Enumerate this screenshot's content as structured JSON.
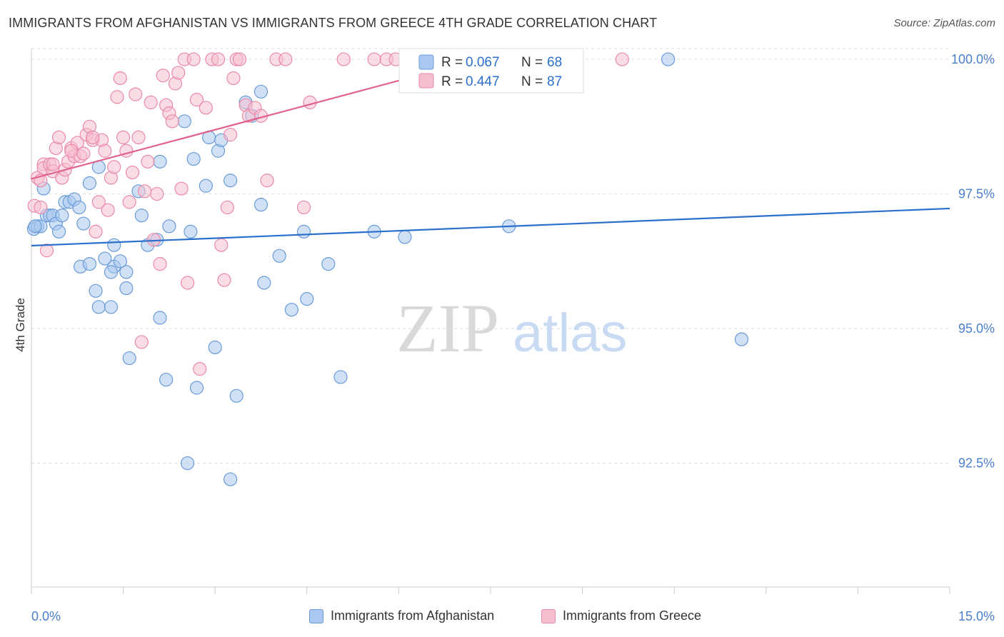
{
  "header": {
    "title": "IMMIGRANTS FROM AFGHANISTAN VS IMMIGRANTS FROM GREECE 4TH GRADE CORRELATION CHART",
    "source": "Source: ZipAtlas.com"
  },
  "watermark": {
    "part1": "ZIP",
    "part2": "atlas"
  },
  "colors": {
    "blue_fill": "#aac8ef",
    "blue_stroke": "#6a9bd8",
    "blue_line": "#2b6fcc",
    "pink_fill": "#f6bfd0",
    "pink_stroke": "#e98aa8",
    "pink_line": "#e0628d",
    "axis_text": "#4a7fcb",
    "grid": "#dddddd"
  },
  "legend": {
    "rows": [
      {
        "r_label": "R = ",
        "r_value": "0.067",
        "n_label": "N = ",
        "n_value": "68"
      },
      {
        "r_label": "R = ",
        "r_value": "0.447",
        "n_label": "N = ",
        "n_value": "87"
      }
    ]
  },
  "chart_data": {
    "type": "scatter",
    "ylabel": "4th Grade",
    "xlim": [
      0,
      15
    ],
    "ylim": [
      90.2,
      100.2
    ],
    "x_tick_labels": [
      "0.0%",
      "15.0%"
    ],
    "y_ticks": [
      92.5,
      95.0,
      97.5,
      100.0
    ],
    "y_tick_labels": [
      "92.5%",
      "95.0%",
      "97.5%",
      "100.0%"
    ],
    "grid": true,
    "legend_position": "top-center",
    "series": [
      {
        "name": "Immigrants from Afghanistan",
        "color": "#aac8ef",
        "trend": {
          "x": [
            0.0,
            15.0
          ],
          "y": [
            96.54,
            97.23
          ]
        },
        "points": [
          [
            0.04,
            96.85
          ],
          [
            0.1,
            96.9
          ],
          [
            0.15,
            96.9
          ],
          [
            0.2,
            97.6
          ],
          [
            0.25,
            97.1
          ],
          [
            0.3,
            97.1
          ],
          [
            0.35,
            97.1
          ],
          [
            0.4,
            96.95
          ],
          [
            0.45,
            96.8
          ],
          [
            0.5,
            97.1
          ],
          [
            0.55,
            97.35
          ],
          [
            0.62,
            97.35
          ],
          [
            0.7,
            97.4
          ],
          [
            0.78,
            97.25
          ],
          [
            0.85,
            96.95
          ],
          [
            0.95,
            97.7
          ],
          [
            1.1,
            98.0
          ],
          [
            0.8,
            96.15
          ],
          [
            0.95,
            96.2
          ],
          [
            1.05,
            95.7
          ],
          [
            1.1,
            95.4
          ],
          [
            1.3,
            95.4
          ],
          [
            1.35,
            96.15
          ],
          [
            1.3,
            96.05
          ],
          [
            1.35,
            96.55
          ],
          [
            1.55,
            96.05
          ],
          [
            1.55,
            95.75
          ],
          [
            1.6,
            94.45
          ],
          [
            1.75,
            97.55
          ],
          [
            1.8,
            97.1
          ],
          [
            1.9,
            96.55
          ],
          [
            2.1,
            98.1
          ],
          [
            2.1,
            95.2
          ],
          [
            2.2,
            94.05
          ],
          [
            2.25,
            96.9
          ],
          [
            2.5,
            98.85
          ],
          [
            2.55,
            92.5
          ],
          [
            2.65,
            98.15
          ],
          [
            2.6,
            96.8
          ],
          [
            2.7,
            93.9
          ],
          [
            2.85,
            97.65
          ],
          [
            2.9,
            98.55
          ],
          [
            3.0,
            94.65
          ],
          [
            3.05,
            98.3
          ],
          [
            3.1,
            98.5
          ],
          [
            3.25,
            97.75
          ],
          [
            3.25,
            92.2
          ],
          [
            3.35,
            93.75
          ],
          [
            3.5,
            99.2
          ],
          [
            3.6,
            98.95
          ],
          [
            3.75,
            99.4
          ],
          [
            3.75,
            97.3
          ],
          [
            3.8,
            95.85
          ],
          [
            4.05,
            96.35
          ],
          [
            4.25,
            95.35
          ],
          [
            4.45,
            96.8
          ],
          [
            4.5,
            95.55
          ],
          [
            4.85,
            96.2
          ],
          [
            5.05,
            94.1
          ],
          [
            5.6,
            96.8
          ],
          [
            6.1,
            96.7
          ],
          [
            7.8,
            96.9
          ],
          [
            10.4,
            100.0
          ],
          [
            11.6,
            94.8
          ],
          [
            0.06,
            96.9
          ],
          [
            1.2,
            96.3
          ],
          [
            2.05,
            96.65
          ],
          [
            1.45,
            96.25
          ]
        ]
      },
      {
        "name": "Immigrants from Greece",
        "color": "#f6bfd0",
        "trend": {
          "x": [
            0.0,
            7.3
          ],
          "y": [
            97.78,
            100.0
          ]
        },
        "points": [
          [
            0.05,
            97.28
          ],
          [
            0.1,
            97.8
          ],
          [
            0.15,
            97.75
          ],
          [
            0.2,
            98.05
          ],
          [
            0.2,
            97.98
          ],
          [
            0.25,
            96.45
          ],
          [
            0.3,
            98.05
          ],
          [
            0.35,
            97.92
          ],
          [
            0.4,
            98.35
          ],
          [
            0.45,
            98.55
          ],
          [
            0.5,
            97.8
          ],
          [
            0.55,
            97.95
          ],
          [
            0.6,
            98.1
          ],
          [
            0.65,
            98.35
          ],
          [
            0.7,
            98.2
          ],
          [
            0.75,
            98.45
          ],
          [
            0.8,
            98.2
          ],
          [
            0.85,
            98.25
          ],
          [
            0.9,
            98.6
          ],
          [
            0.95,
            98.75
          ],
          [
            1.0,
            98.5
          ],
          [
            1.05,
            96.8
          ],
          [
            1.1,
            97.35
          ],
          [
            1.15,
            98.5
          ],
          [
            1.2,
            98.3
          ],
          [
            1.25,
            97.2
          ],
          [
            1.3,
            97.8
          ],
          [
            1.35,
            98.0
          ],
          [
            1.4,
            99.3
          ],
          [
            1.45,
            99.65
          ],
          [
            1.5,
            98.55
          ],
          [
            1.55,
            98.3
          ],
          [
            1.6,
            97.35
          ],
          [
            1.65,
            97.9
          ],
          [
            1.7,
            99.35
          ],
          [
            1.75,
            98.55
          ],
          [
            1.8,
            94.75
          ],
          [
            1.85,
            97.55
          ],
          [
            1.9,
            98.1
          ],
          [
            1.95,
            99.2
          ],
          [
            2.0,
            96.65
          ],
          [
            2.05,
            97.5
          ],
          [
            2.1,
            96.2
          ],
          [
            2.15,
            99.7
          ],
          [
            2.2,
            99.15
          ],
          [
            2.25,
            99.0
          ],
          [
            2.3,
            98.85
          ],
          [
            2.35,
            99.55
          ],
          [
            2.4,
            99.75
          ],
          [
            2.45,
            97.6
          ],
          [
            2.5,
            100.0
          ],
          [
            2.55,
            95.85
          ],
          [
            2.65,
            100.0
          ],
          [
            2.7,
            99.25
          ],
          [
            2.75,
            94.25
          ],
          [
            2.85,
            99.1
          ],
          [
            2.95,
            100.0
          ],
          [
            3.05,
            100.0
          ],
          [
            3.1,
            96.55
          ],
          [
            3.15,
            95.9
          ],
          [
            3.2,
            97.25
          ],
          [
            3.25,
            98.6
          ],
          [
            3.3,
            99.65
          ],
          [
            3.35,
            100.0
          ],
          [
            3.4,
            100.0
          ],
          [
            3.5,
            99.15
          ],
          [
            3.55,
            98.95
          ],
          [
            3.65,
            99.1
          ],
          [
            3.75,
            98.95
          ],
          [
            3.85,
            97.75
          ],
          [
            4.0,
            100.0
          ],
          [
            4.15,
            100.0
          ],
          [
            4.45,
            97.25
          ],
          [
            4.55,
            99.2
          ],
          [
            5.1,
            100.0
          ],
          [
            5.6,
            100.0
          ],
          [
            5.8,
            100.0
          ],
          [
            5.95,
            100.0
          ],
          [
            6.3,
            100.0
          ],
          [
            6.7,
            100.0
          ],
          [
            7.05,
            100.0
          ],
          [
            7.35,
            100.0
          ],
          [
            9.65,
            100.0
          ],
          [
            0.15,
            97.25
          ],
          [
            0.35,
            98.05
          ],
          [
            0.65,
            98.3
          ],
          [
            1.0,
            98.55
          ]
        ]
      }
    ]
  }
}
